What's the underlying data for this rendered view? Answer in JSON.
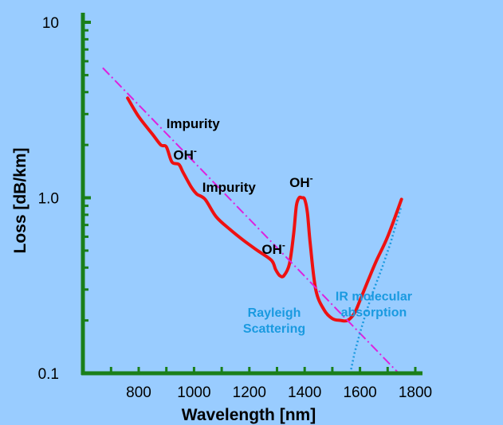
{
  "chart_data": {
    "type": "line",
    "title": "",
    "xlabel": "Wavelength [nm]",
    "ylabel": "Loss [dB/km]",
    "xlim": [
      650,
      1800
    ],
    "ylim": [
      0.1,
      10
    ],
    "y_scale": "log",
    "x_ticks": [
      800,
      1000,
      1200,
      1400,
      1600,
      1800
    ],
    "x_tick_labels": [
      "800",
      "1000",
      "1200",
      "1400",
      "1600",
      "1800"
    ],
    "y_ticks": [
      0.1,
      1.0,
      10
    ],
    "y_tick_labels": [
      "0.1",
      "1.0",
      "10"
    ],
    "grid": false,
    "colors": {
      "background": "#99ccff",
      "axis": "#1a7f1a",
      "loss_curve": "#ee1111",
      "rayleigh": "#dd22dd",
      "ir_absorption": "#1a9ae0"
    },
    "series": [
      {
        "x": [
          760,
          800,
          850,
          880,
          900,
          920,
          945,
          960,
          990,
          1010,
          1040,
          1080,
          1130,
          1180,
          1230,
          1280,
          1295,
          1310,
          1325,
          1345,
          1360,
          1370,
          1380,
          1390,
          1400,
          1410,
          1420,
          1440,
          1470,
          1500,
          1530,
          1555,
          1580,
          1600,
          1630,
          1660,
          1700,
          1750
        ],
        "y": [
          3.7,
          2.9,
          2.3,
          2.0,
          1.95,
          1.6,
          1.55,
          1.4,
          1.15,
          1.05,
          0.98,
          0.78,
          0.66,
          0.57,
          0.5,
          0.44,
          0.39,
          0.36,
          0.36,
          0.42,
          0.62,
          0.9,
          1.0,
          1.0,
          0.98,
          0.82,
          0.55,
          0.3,
          0.23,
          0.205,
          0.2,
          0.2,
          0.22,
          0.26,
          0.34,
          0.44,
          0.6,
          0.98
        ]
      },
      {
        "x": [
          670,
          1740
        ],
        "y": [
          5.5,
          0.1
        ]
      },
      {
        "x": [
          1565,
          1580,
          1600,
          1625,
          1650,
          1680,
          1710,
          1750
        ],
        "y": [
          0.1,
          0.13,
          0.17,
          0.23,
          0.3,
          0.4,
          0.55,
          0.9
        ]
      }
    ],
    "annotations": [
      {
        "text": "Impurity",
        "x": 900,
        "y": 2.5
      },
      {
        "text": "OH",
        "superscript": "-",
        "x": 925,
        "y": 1.65
      },
      {
        "text": "Impurity",
        "x": 1030,
        "y": 1.08
      },
      {
        "text": "OH",
        "superscript": "-",
        "x": 1345,
        "y": 1.15
      },
      {
        "text": "OH",
        "superscript": "-",
        "x": 1245,
        "y": 0.48
      },
      {
        "text": "Rayleigh",
        "line2": "Scattering",
        "x": 1290,
        "y": 0.21
      },
      {
        "text": "IR molecular",
        "line2": "absorption",
        "x": 1650,
        "y": 0.26
      }
    ]
  }
}
